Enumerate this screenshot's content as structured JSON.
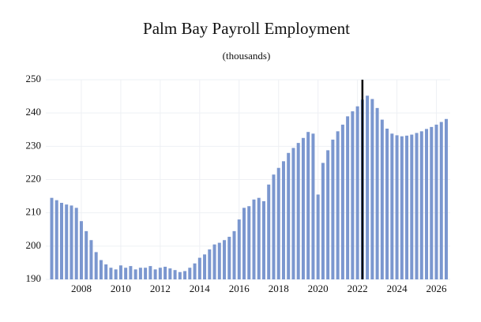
{
  "chart_data": {
    "type": "bar",
    "title": "Palm Bay Payroll Employment",
    "subtitle": "(thousands)",
    "x": [
      2006.5,
      2006.75,
      2007,
      2007.25,
      2007.5,
      2007.75,
      2008,
      2008.25,
      2008.5,
      2008.75,
      2009,
      2009.25,
      2009.5,
      2009.75,
      2010,
      2010.25,
      2010.5,
      2010.75,
      2011,
      2011.25,
      2011.5,
      2011.75,
      2012,
      2012.25,
      2012.5,
      2012.75,
      2013,
      2013.25,
      2013.5,
      2013.75,
      2014,
      2014.25,
      2014.5,
      2014.75,
      2015,
      2015.25,
      2015.5,
      2015.75,
      2016,
      2016.25,
      2016.5,
      2016.75,
      2017,
      2017.25,
      2017.5,
      2017.75,
      2018,
      2018.25,
      2018.5,
      2018.75,
      2019,
      2019.25,
      2019.5,
      2019.75,
      2020,
      2020.25,
      2020.5,
      2020.75,
      2021,
      2021.25,
      2021.5,
      2021.75,
      2022,
      2022.25,
      2022.5,
      2022.75,
      2023,
      2023.25,
      2023.5,
      2023.75,
      2024,
      2024.25,
      2024.5,
      2024.75,
      2025,
      2025.25,
      2025.5,
      2025.75,
      2026,
      2026.25,
      2026.5
    ],
    "values": [
      214.5,
      213.8,
      213,
      212.5,
      212.2,
      211.5,
      207.5,
      204.5,
      201.8,
      198.2,
      195.8,
      194.5,
      193.5,
      193,
      194.2,
      193.5,
      194,
      193,
      193.5,
      193.5,
      194,
      193,
      193.5,
      193.8,
      193.3,
      192.8,
      192.2,
      192.5,
      193.5,
      194.8,
      196.5,
      197.5,
      199,
      200.5,
      201,
      201.8,
      202.8,
      204.5,
      208,
      211.5,
      212,
      214,
      214.5,
      213.5,
      218.5,
      221.5,
      223.5,
      225.5,
      228,
      229.5,
      231,
      232.5,
      234.3,
      233.8,
      215.5,
      225,
      228.8,
      232,
      234.5,
      236.5,
      239,
      240.5,
      242,
      244,
      245.2,
      244.2,
      241.5,
      238,
      235.3,
      233.8,
      233.3,
      233,
      233.2,
      233.5,
      234,
      234.5,
      235.2,
      235.8,
      236.5,
      237.3,
      238.2
    ],
    "color": "#7b97cf",
    "marker_x": 2022.25,
    "xlim": [
      2006.2,
      2026.7
    ],
    "xticks": [
      2008,
      2010,
      2012,
      2014,
      2016,
      2018,
      2020,
      2022,
      2024,
      2026
    ],
    "ylim": [
      190,
      250
    ],
    "yticks": [
      190,
      200,
      210,
      220,
      230,
      240,
      250
    ],
    "grid": true
  }
}
